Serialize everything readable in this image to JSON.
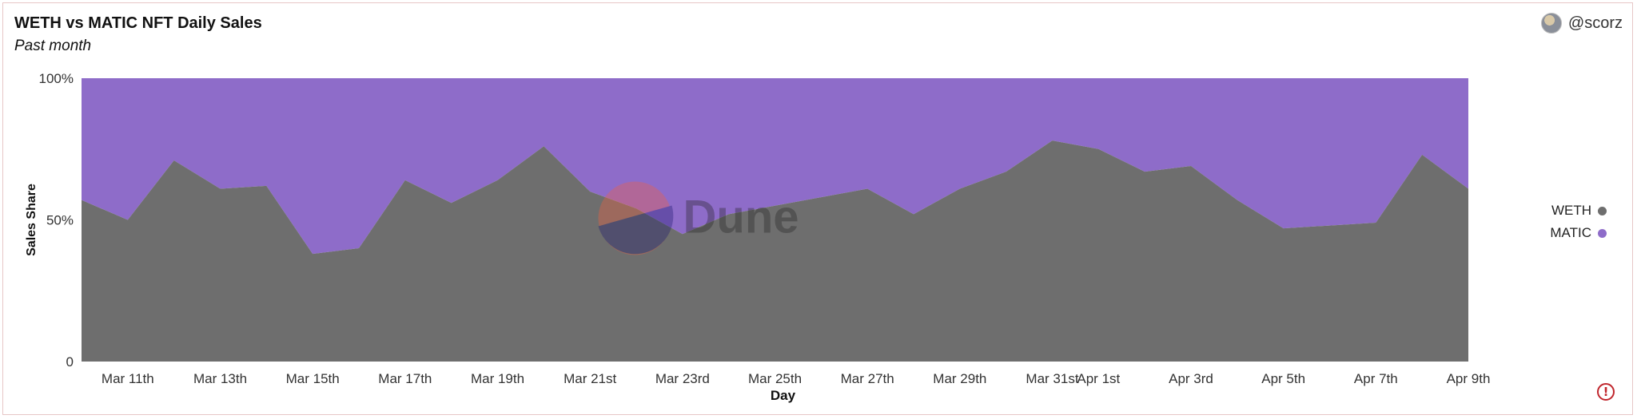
{
  "header": {
    "title": "WETH vs MATIC NFT Daily Sales",
    "subtitle": "Past month",
    "author": "@scorz",
    "avatar_icon": "user-avatar"
  },
  "watermark": {
    "text": "Dune",
    "icon": "dune-logo-icon"
  },
  "warning_icon": "alert-circle-icon",
  "chart_data": {
    "type": "area",
    "stacked": "percent",
    "xlabel": "Day",
    "ylabel": "Sales Share",
    "ylim": [
      0,
      100
    ],
    "y_ticks": [
      "0",
      "50%",
      "100%"
    ],
    "x_tick_labels": [
      "Mar 11th",
      "Mar 13th",
      "Mar 15th",
      "Mar 17th",
      "Mar 19th",
      "Mar 21st",
      "Mar 23rd",
      "Mar 25th",
      "Mar 27th",
      "Mar 29th",
      "Mar 31st",
      "Apr 1st",
      "Apr 3rd",
      "Apr 5th",
      "Apr 7th",
      "Apr 9th"
    ],
    "x": [
      "Mar 10",
      "Mar 11",
      "Mar 12",
      "Mar 13",
      "Mar 14",
      "Mar 15",
      "Mar 16",
      "Mar 17",
      "Mar 18",
      "Mar 19",
      "Mar 20",
      "Mar 21",
      "Mar 22",
      "Mar 23",
      "Mar 24",
      "Mar 25",
      "Mar 26",
      "Mar 27",
      "Mar 28",
      "Mar 29",
      "Mar 30",
      "Mar 31",
      "Apr 1",
      "Apr 2",
      "Apr 3",
      "Apr 4",
      "Apr 5",
      "Apr 6",
      "Apr 7",
      "Apr 8",
      "Apr 9"
    ],
    "series": [
      {
        "name": "WETH",
        "color": "#6e6e6e",
        "values": [
          57,
          50,
          71,
          61,
          62,
          38,
          40,
          64,
          56,
          64,
          76,
          60,
          54,
          45,
          52,
          55,
          58,
          61,
          52,
          61,
          67,
          78,
          75,
          67,
          69,
          57,
          47,
          48,
          49,
          73,
          61
        ]
      },
      {
        "name": "MATIC",
        "color": "#8e6cc9",
        "values": [
          43,
          50,
          29,
          39,
          38,
          62,
          60,
          36,
          44,
          36,
          24,
          40,
          46,
          55,
          48,
          45,
          42,
          39,
          48,
          39,
          33,
          22,
          25,
          33,
          31,
          43,
          53,
          52,
          51,
          27,
          39
        ]
      }
    ],
    "legend": "right",
    "grid": false
  }
}
